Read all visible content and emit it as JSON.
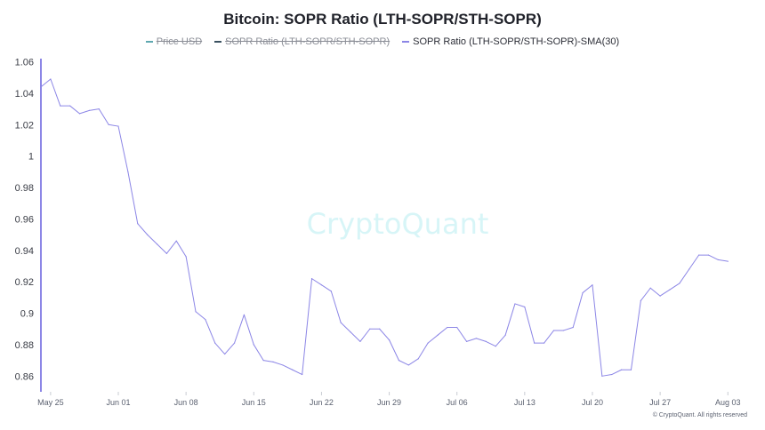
{
  "header": {
    "title": "Bitcoin: SOPR Ratio (LTH-SOPR/STH-SOPR)"
  },
  "legend": [
    {
      "label": "Price USD",
      "state": "hidden",
      "color": "#5fa8b0"
    },
    {
      "label": "SOPR Ratio (LTH-SOPR/STH-SOPR)",
      "state": "hidden",
      "color": "#3a5160"
    },
    {
      "label": "SOPR Ratio (LTH-SOPR/STH-SOPR)-SMA(30)",
      "state": "visible",
      "color": "#8c86e6"
    }
  ],
  "watermark": "CryptoQuant",
  "footer": {
    "copyright": "© CryptoQuant. All rights reserved"
  },
  "chart_data": {
    "type": "line",
    "title": "Bitcoin: SOPR Ratio (LTH-SOPR/STH-SOPR)",
    "xlabel": "",
    "ylabel": "",
    "ylim": [
      0.85,
      1.062
    ],
    "yticks": [
      1.06,
      1.04,
      1.02,
      1,
      0.98,
      0.96,
      0.94,
      0.92,
      0.9,
      0.88,
      0.86
    ],
    "xlim": [
      "2025-05-24",
      "2025-08-05"
    ],
    "xticks": [
      "May 25",
      "Jun 01",
      "Jun 08",
      "Jun 15",
      "Jun 22",
      "Jun 29",
      "Jul 06",
      "Jul 13",
      "Jul 20",
      "Jul 27",
      "Aug 03"
    ],
    "grid": false,
    "legend_position": "top-center",
    "series": [
      {
        "name": "SOPR Ratio (LTH-SOPR/STH-SOPR)-SMA(30)",
        "color": "#8c86e6",
        "points": [
          [
            "2025-05-24",
            1.044
          ],
          [
            "2025-05-25",
            1.049
          ],
          [
            "2025-05-26",
            1.032
          ],
          [
            "2025-05-27",
            1.032
          ],
          [
            "2025-05-28",
            1.027
          ],
          [
            "2025-05-29",
            1.029
          ],
          [
            "2025-05-30",
            1.03
          ],
          [
            "2025-05-31",
            1.02
          ],
          [
            "2025-06-01",
            1.019
          ],
          [
            "2025-06-02",
            0.99
          ],
          [
            "2025-06-03",
            0.957
          ],
          [
            "2025-06-04",
            0.95
          ],
          [
            "2025-06-05",
            0.944
          ],
          [
            "2025-06-06",
            0.938
          ],
          [
            "2025-06-07",
            0.946
          ],
          [
            "2025-06-08",
            0.936
          ],
          [
            "2025-06-09",
            0.901
          ],
          [
            "2025-06-10",
            0.896
          ],
          [
            "2025-06-11",
            0.881
          ],
          [
            "2025-06-12",
            0.874
          ],
          [
            "2025-06-13",
            0.881
          ],
          [
            "2025-06-14",
            0.899
          ],
          [
            "2025-06-15",
            0.88
          ],
          [
            "2025-06-16",
            0.87
          ],
          [
            "2025-06-17",
            0.869
          ],
          [
            "2025-06-18",
            0.867
          ],
          [
            "2025-06-19",
            0.864
          ],
          [
            "2025-06-20",
            0.861
          ],
          [
            "2025-06-21",
            0.922
          ],
          [
            "2025-06-22",
            0.918
          ],
          [
            "2025-06-23",
            0.914
          ],
          [
            "2025-06-24",
            0.894
          ],
          [
            "2025-06-25",
            0.888
          ],
          [
            "2025-06-26",
            0.882
          ],
          [
            "2025-06-27",
            0.89
          ],
          [
            "2025-06-28",
            0.89
          ],
          [
            "2025-06-29",
            0.883
          ],
          [
            "2025-06-30",
            0.87
          ],
          [
            "2025-07-01",
            0.867
          ],
          [
            "2025-07-02",
            0.871
          ],
          [
            "2025-07-03",
            0.881
          ],
          [
            "2025-07-04",
            0.886
          ],
          [
            "2025-07-05",
            0.891
          ],
          [
            "2025-07-06",
            0.891
          ],
          [
            "2025-07-07",
            0.882
          ],
          [
            "2025-07-08",
            0.884
          ],
          [
            "2025-07-09",
            0.882
          ],
          [
            "2025-07-10",
            0.879
          ],
          [
            "2025-07-11",
            0.886
          ],
          [
            "2025-07-12",
            0.906
          ],
          [
            "2025-07-13",
            0.904
          ],
          [
            "2025-07-14",
            0.881
          ],
          [
            "2025-07-15",
            0.881
          ],
          [
            "2025-07-16",
            0.889
          ],
          [
            "2025-07-17",
            0.889
          ],
          [
            "2025-07-18",
            0.891
          ],
          [
            "2025-07-19",
            0.913
          ],
          [
            "2025-07-20",
            0.918
          ],
          [
            "2025-07-21",
            0.86
          ],
          [
            "2025-07-22",
            0.861
          ],
          [
            "2025-07-23",
            0.864
          ],
          [
            "2025-07-24",
            0.864
          ],
          [
            "2025-07-25",
            0.908
          ],
          [
            "2025-07-26",
            0.916
          ],
          [
            "2025-07-27",
            0.911
          ],
          [
            "2025-07-28",
            0.915
          ],
          [
            "2025-07-29",
            0.919
          ],
          [
            "2025-07-30",
            0.928
          ],
          [
            "2025-07-31",
            0.937
          ],
          [
            "2025-08-01",
            0.937
          ],
          [
            "2025-08-02",
            0.934
          ],
          [
            "2025-08-03",
            0.933
          ]
        ]
      }
    ]
  }
}
